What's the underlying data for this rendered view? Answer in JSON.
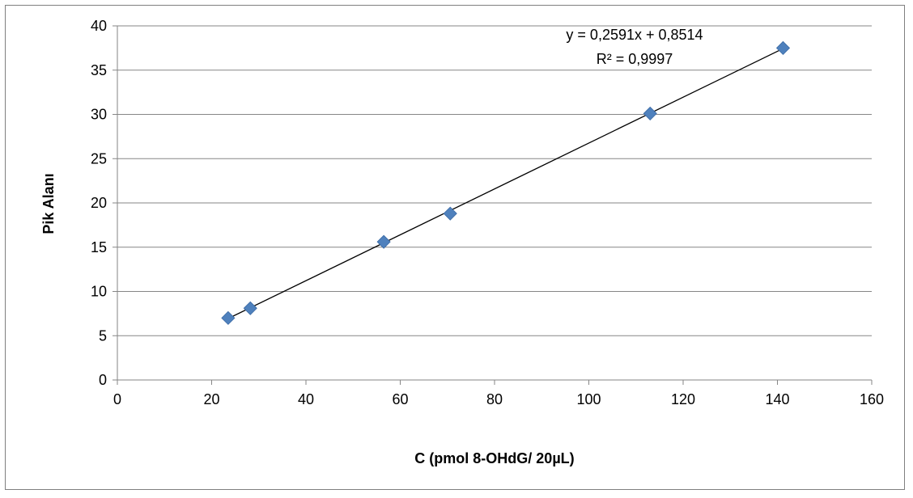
{
  "chart_data": {
    "type": "scatter",
    "title": "",
    "xlabel": "C (pmol 8-OHdG/ 20µL)",
    "ylabel": "Pik Alanı",
    "xlim": [
      0,
      160
    ],
    "ylim": [
      0,
      40
    ],
    "x_ticks": [
      0,
      20,
      40,
      60,
      80,
      100,
      120,
      140,
      160
    ],
    "y_ticks": [
      0,
      5,
      10,
      15,
      20,
      25,
      30,
      35,
      40
    ],
    "grid": "horizontal",
    "marker": "diamond",
    "marker_color": "#4f81bd",
    "points": [
      {
        "x": 23.5,
        "y": 7.0
      },
      {
        "x": 28.2,
        "y": 8.1
      },
      {
        "x": 56.5,
        "y": 15.6
      },
      {
        "x": 70.6,
        "y": 18.8
      },
      {
        "x": 113.0,
        "y": 30.1
      },
      {
        "x": 141.2,
        "y": 37.5
      }
    ],
    "trendline": {
      "slope": 0.2591,
      "intercept": 0.8514,
      "x_range": [
        23.5,
        141.2
      ],
      "equation": "y = 0,2591x + 0,8514",
      "r_squared": "R² = 0,9997",
      "color": "#000000"
    }
  }
}
